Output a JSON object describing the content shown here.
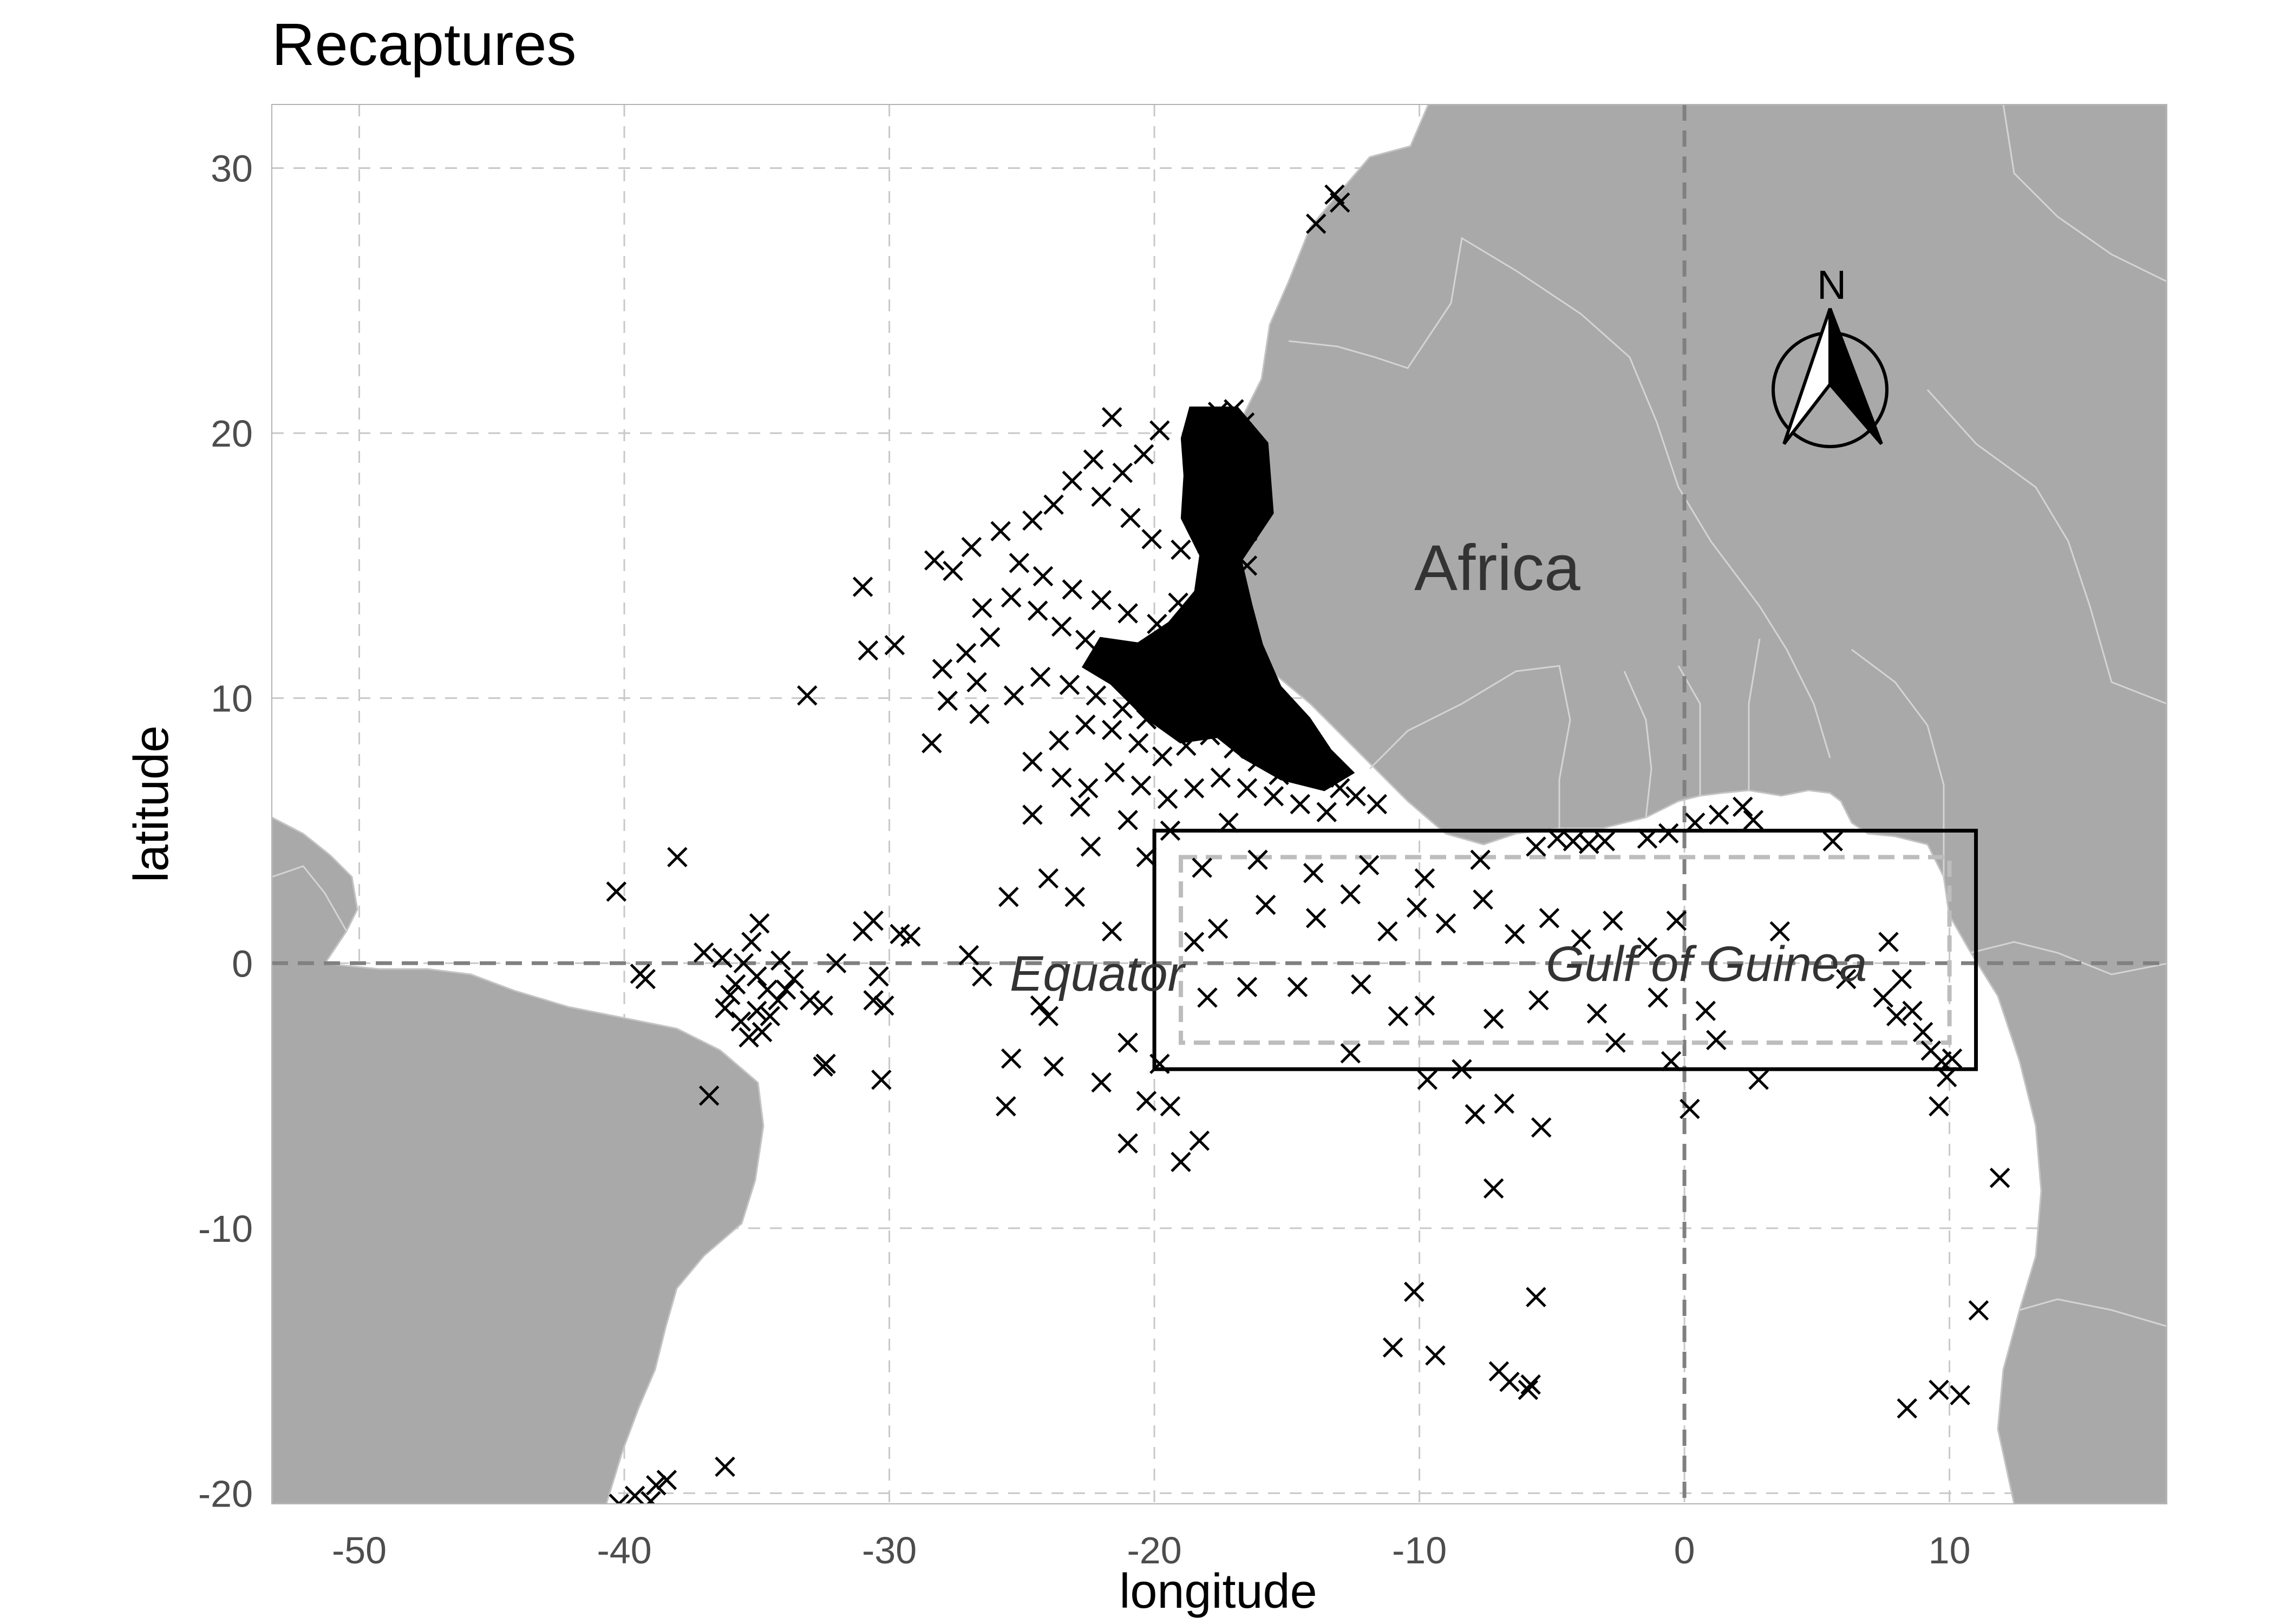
{
  "title": "Recaptures",
  "x_axis": {
    "title": "longitude",
    "ticks": [
      -50,
      -40,
      -30,
      -20,
      -10,
      0,
      10
    ]
  },
  "y_axis": {
    "title": "latitude",
    "ticks": [
      30,
      20,
      10,
      0,
      -10,
      -20
    ]
  },
  "labels": {
    "continent": "Africa",
    "equator": "Equator",
    "gulf": "Gulf of Guinea",
    "north": "N"
  },
  "colors": {
    "land": "#a9a9a9",
    "marker": "#000000",
    "grid": "#c8c8c8",
    "dashed_box": "#bdbdbd"
  },
  "chart_data": {
    "type": "scatter",
    "title": "Recaptures",
    "xlabel": "longitude",
    "ylabel": "latitude",
    "xlim": [
      -53.3,
      18.2
    ],
    "ylim": [
      -20.4,
      32.4
    ],
    "marker": "x",
    "grid": true,
    "reference_lines": {
      "equator_latitude": 0,
      "prime_meridian_longitude": 0
    },
    "boxes": [
      {
        "style": "solid",
        "lon": [
          -20,
          11
        ],
        "lat": [
          -4,
          5
        ]
      },
      {
        "style": "dashed",
        "lon": [
          -19,
          10
        ],
        "lat": [
          -3,
          4
        ]
      }
    ],
    "points": [
      [
        -13.2,
        29.0
      ],
      [
        -13.0,
        28.7
      ],
      [
        -13.9,
        27.9
      ],
      [
        -18.2,
        20.5
      ],
      [
        -17.6,
        20.8
      ],
      [
        -17.0,
        20.9
      ],
      [
        -16.6,
        20.4
      ],
      [
        -17.9,
        20.0
      ],
      [
        -17.3,
        19.8
      ],
      [
        -16.8,
        19.5
      ],
      [
        -18.4,
        19.6
      ],
      [
        -17.7,
        19.1
      ],
      [
        -17.1,
        18.8
      ],
      [
        -16.5,
        18.6
      ],
      [
        -18.0,
        18.3
      ],
      [
        -17.4,
        18.0
      ],
      [
        -16.7,
        17.8
      ],
      [
        -16.4,
        17.3
      ],
      [
        -17.2,
        17.4
      ],
      [
        -17.8,
        17.0
      ],
      [
        -16.9,
        16.8
      ],
      [
        -16.5,
        16.3
      ],
      [
        -17.3,
        16.2
      ],
      [
        -18.2,
        16.6
      ],
      [
        -17.6,
        15.8
      ],
      [
        -16.9,
        15.4
      ],
      [
        -16.5,
        15.0
      ],
      [
        -17.2,
        14.9
      ],
      [
        -18.0,
        15.2
      ],
      [
        -19.0,
        15.6
      ],
      [
        -20.1,
        16.0
      ],
      [
        -20.9,
        16.8
      ],
      [
        -22.0,
        17.6
      ],
      [
        -21.2,
        18.5
      ],
      [
        -20.4,
        19.2
      ],
      [
        -19.8,
        20.1
      ],
      [
        -21.6,
        20.6
      ],
      [
        -22.3,
        19.0
      ],
      [
        -23.1,
        18.2
      ],
      [
        -23.8,
        17.3
      ],
      [
        -24.6,
        16.7
      ],
      [
        -25.8,
        16.3
      ],
      [
        -26.9,
        15.7
      ],
      [
        -25.1,
        15.1
      ],
      [
        -24.2,
        14.6
      ],
      [
        -23.1,
        14.1
      ],
      [
        -22.0,
        13.7
      ],
      [
        -21.0,
        13.2
      ],
      [
        -19.9,
        12.8
      ],
      [
        -19.1,
        13.6
      ],
      [
        -18.3,
        12.9
      ],
      [
        -17.6,
        12.4
      ],
      [
        -17.0,
        11.8
      ],
      [
        -16.6,
        11.2
      ],
      [
        -17.4,
        11.0
      ],
      [
        -18.4,
        11.5
      ],
      [
        -19.5,
        11.9
      ],
      [
        -20.6,
        11.6
      ],
      [
        -21.6,
        11.3
      ],
      [
        -22.6,
        12.2
      ],
      [
        -23.5,
        12.7
      ],
      [
        -24.4,
        13.3
      ],
      [
        -25.4,
        13.8
      ],
      [
        -26.5,
        13.4
      ],
      [
        -27.6,
        14.8
      ],
      [
        -28.3,
        15.2
      ],
      [
        -26.2,
        12.3
      ],
      [
        -27.1,
        11.7
      ],
      [
        -28.0,
        11.1
      ],
      [
        -26.7,
        10.6
      ],
      [
        -27.8,
        9.9
      ],
      [
        -26.6,
        9.4
      ],
      [
        -25.3,
        10.1
      ],
      [
        -24.3,
        10.8
      ],
      [
        -23.2,
        10.5
      ],
      [
        -22.2,
        10.1
      ],
      [
        -21.2,
        9.6
      ],
      [
        -20.3,
        9.2
      ],
      [
        -19.3,
        9.5
      ],
      [
        -18.4,
        9.9
      ],
      [
        -17.6,
        9.4
      ],
      [
        -16.9,
        9.0
      ],
      [
        -16.2,
        8.6
      ],
      [
        -15.6,
        8.2
      ],
      [
        -14.9,
        7.8
      ],
      [
        -14.2,
        7.4
      ],
      [
        -13.6,
        7.0
      ],
      [
        -13.0,
        6.6
      ],
      [
        -12.4,
        6.3
      ],
      [
        -11.6,
        6.0
      ],
      [
        -15.3,
        7.1
      ],
      [
        -16.1,
        7.6
      ],
      [
        -17.0,
        8.1
      ],
      [
        -17.9,
        8.6
      ],
      [
        -18.8,
        8.2
      ],
      [
        -19.7,
        7.8
      ],
      [
        -20.6,
        8.3
      ],
      [
        -21.6,
        8.8
      ],
      [
        -22.6,
        9.0
      ],
      [
        -23.6,
        8.4
      ],
      [
        -24.6,
        7.6
      ],
      [
        -23.5,
        7.0
      ],
      [
        -22.5,
        6.6
      ],
      [
        -21.5,
        7.2
      ],
      [
        -20.5,
        6.7
      ],
      [
        -19.5,
        6.2
      ],
      [
        -18.5,
        6.6
      ],
      [
        -17.5,
        7.0
      ],
      [
        -16.5,
        6.6
      ],
      [
        -15.5,
        6.3
      ],
      [
        -14.5,
        6.0
      ],
      [
        -13.5,
        5.7
      ],
      [
        -24.6,
        5.6
      ],
      [
        -22.8,
        5.9
      ],
      [
        -21.0,
        5.4
      ],
      [
        -19.4,
        5.0
      ],
      [
        -17.2,
        5.3
      ],
      [
        -30.8,
        11.8
      ],
      [
        -33.1,
        10.1
      ],
      [
        -28.4,
        8.3
      ],
      [
        -29.8,
        12.0
      ],
      [
        -31.0,
        14.2
      ],
      [
        -22.4,
        4.4
      ],
      [
        -20.3,
        4.0
      ],
      [
        -18.2,
        3.6
      ],
      [
        -16.1,
        3.9
      ],
      [
        -14.0,
        3.4
      ],
      [
        -11.9,
        3.7
      ],
      [
        -9.8,
        3.2
      ],
      [
        -7.7,
        3.9
      ],
      [
        -5.6,
        4.4
      ],
      [
        -4.8,
        4.7
      ],
      [
        -4.2,
        4.6
      ],
      [
        -3.6,
        4.5
      ],
      [
        -3.0,
        4.6
      ],
      [
        -1.4,
        4.7
      ],
      [
        -0.6,
        4.9
      ],
      [
        0.4,
        5.3
      ],
      [
        1.3,
        5.6
      ],
      [
        2.2,
        5.9
      ],
      [
        2.6,
        5.4
      ],
      [
        5.6,
        4.6
      ],
      [
        -15.8,
        2.2
      ],
      [
        -13.9,
        1.7
      ],
      [
        -12.6,
        2.6
      ],
      [
        -11.2,
        1.2
      ],
      [
        -10.1,
        2.1
      ],
      [
        -9.0,
        1.5
      ],
      [
        -7.6,
        2.4
      ],
      [
        -6.4,
        1.1
      ],
      [
        -5.1,
        1.7
      ],
      [
        -3.9,
        0.9
      ],
      [
        -2.7,
        1.6
      ],
      [
        -1.4,
        0.6
      ],
      [
        -0.3,
        1.6
      ],
      [
        -17.6,
        1.3
      ],
      [
        -18.5,
        0.8
      ],
      [
        -21.6,
        1.2
      ],
      [
        -23.0,
        2.5
      ],
      [
        -24.0,
        3.2
      ],
      [
        -25.5,
        2.5
      ],
      [
        -16.5,
        -0.9
      ],
      [
        -14.6,
        -0.9
      ],
      [
        -12.2,
        -0.8
      ],
      [
        -9.8,
        -1.6
      ],
      [
        -7.2,
        -2.1
      ],
      [
        -5.5,
        -1.4
      ],
      [
        -3.3,
        -1.9
      ],
      [
        -1.0,
        -1.3
      ],
      [
        0.8,
        -1.8
      ],
      [
        -18.0,
        -1.3
      ],
      [
        -19.8,
        -3.8
      ],
      [
        -21.0,
        -3.0
      ],
      [
        -22.0,
        -4.5
      ],
      [
        -23.8,
        -3.9
      ],
      [
        -25.4,
        -3.6
      ],
      [
        -25.6,
        -5.4
      ],
      [
        -20.3,
        -5.2
      ],
      [
        -19.4,
        -5.4
      ],
      [
        -18.3,
        -6.7
      ],
      [
        -19.0,
        -7.5
      ],
      [
        -21.0,
        -6.8
      ],
      [
        -12.6,
        -3.4
      ],
      [
        -10.8,
        -2.0
      ],
      [
        -9.7,
        -4.4
      ],
      [
        -8.4,
        -4.0
      ],
      [
        -7.9,
        -5.7
      ],
      [
        -6.8,
        -5.3
      ],
      [
        -5.4,
        -6.2
      ],
      [
        -7.2,
        -8.5
      ],
      [
        -2.6,
        -3.0
      ],
      [
        -0.5,
        -3.7
      ],
      [
        0.2,
        -5.5
      ],
      [
        1.2,
        -2.9
      ],
      [
        2.8,
        -4.4
      ],
      [
        3.6,
        1.2
      ],
      [
        6.1,
        -0.6
      ],
      [
        7.7,
        0.8
      ],
      [
        8.2,
        -0.6
      ],
      [
        8.6,
        -1.8
      ],
      [
        9.0,
        -2.6
      ],
      [
        9.3,
        -3.3
      ],
      [
        9.9,
        -4.3
      ],
      [
        9.6,
        -5.4
      ],
      [
        9.7,
        -3.7
      ],
      [
        10.1,
        -3.6
      ],
      [
        8.0,
        -2.0
      ],
      [
        7.5,
        -1.3
      ],
      [
        11.9,
        -8.1
      ],
      [
        11.1,
        -13.1
      ],
      [
        10.4,
        -16.3
      ],
      [
        9.6,
        -16.1
      ],
      [
        8.4,
        -16.8
      ],
      [
        -10.2,
        -12.4
      ],
      [
        -9.4,
        -14.8
      ],
      [
        -11.0,
        -14.5
      ],
      [
        -7.0,
        -15.4
      ],
      [
        -6.6,
        -15.8
      ],
      [
        -5.8,
        -15.9
      ],
      [
        -5.9,
        -16.1
      ],
      [
        -5.6,
        -12.6
      ],
      [
        -36.2,
        -19.0
      ],
      [
        -38.4,
        -19.5
      ],
      [
        -38.8,
        -19.7
      ],
      [
        -39.6,
        -20.1
      ],
      [
        -39.0,
        -20.3
      ],
      [
        -40.2,
        -20.4
      ],
      [
        -40.3,
        2.7
      ],
      [
        -38.0,
        4.0
      ],
      [
        -39.4,
        -0.4
      ],
      [
        -39.2,
        -0.6
      ],
      [
        -37.0,
        0.4
      ],
      [
        -36.3,
        0.2
      ],
      [
        -35.5,
        0.0
      ],
      [
        -35.0,
        -0.5
      ],
      [
        -34.6,
        -1.0
      ],
      [
        -35.8,
        -0.8
      ],
      [
        -34.2,
        -1.4
      ],
      [
        -35.0,
        -1.8
      ],
      [
        -35.6,
        -2.2
      ],
      [
        -34.5,
        -2.0
      ],
      [
        -33.9,
        -1.0
      ],
      [
        -34.1,
        0.1
      ],
      [
        -35.2,
        0.8
      ],
      [
        -34.9,
        1.5
      ],
      [
        -36.2,
        -1.7
      ],
      [
        -36.0,
        -1.2
      ],
      [
        -34.8,
        -2.6
      ],
      [
        -35.3,
        -2.8
      ],
      [
        -33.0,
        -1.4
      ],
      [
        -32.5,
        -1.6
      ],
      [
        -32.0,
        0.0
      ],
      [
        -33.6,
        -0.6
      ],
      [
        -31.0,
        1.2
      ],
      [
        -30.6,
        1.6
      ],
      [
        -29.6,
        1.1
      ],
      [
        -29.2,
        1.0
      ],
      [
        -30.6,
        -1.4
      ],
      [
        -30.2,
        -1.6
      ],
      [
        -30.4,
        -0.5
      ],
      [
        -32.4,
        -3.8
      ],
      [
        -32.5,
        -3.9
      ],
      [
        -30.3,
        -4.4
      ],
      [
        -36.8,
        -5.0
      ],
      [
        -27.0,
        0.3
      ],
      [
        -26.5,
        -0.5
      ],
      [
        -24.3,
        -1.6
      ],
      [
        -24.0,
        -2.0
      ]
    ]
  }
}
